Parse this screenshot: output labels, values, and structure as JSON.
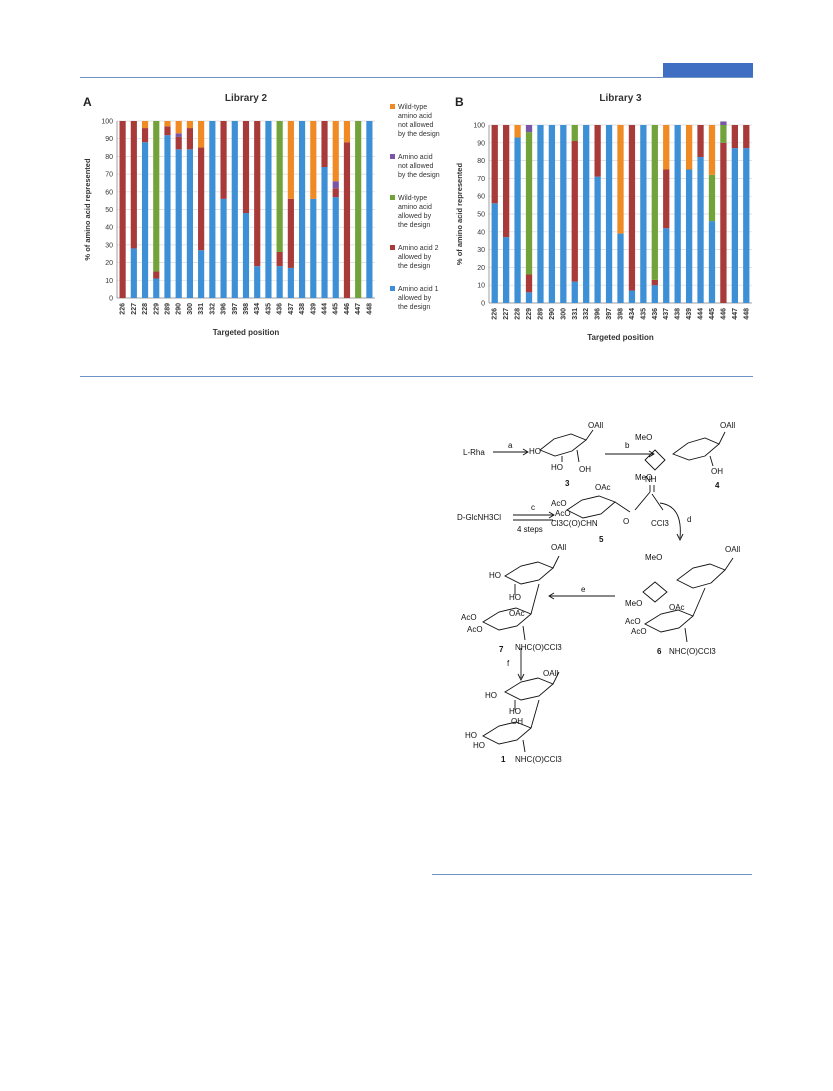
{
  "colors": {
    "rule": "#6f93c6",
    "header_block": "#3f6fc2",
    "amino_acid_1": "#3d8fd6",
    "amino_acid_2": "#a83a3a",
    "wild_type_allowed": "#72a33a",
    "not_allowed": "#7a57a6",
    "wild_type_not_allowed": "#f08a24"
  },
  "figure_letters": {
    "a": "A",
    "b": "B"
  },
  "chart_data": [
    {
      "type": "bar",
      "stacked": true,
      "title": "Library 2",
      "xlabel": "Targeted position",
      "ylabel": "% of amino acid represented",
      "ylim": [
        0,
        100
      ],
      "yticks": [
        "0",
        "10",
        "20",
        "30",
        "40",
        "50",
        "60",
        "70",
        "80",
        "90",
        "100"
      ],
      "grid": true,
      "legend_position": "right",
      "categories": [
        "226",
        "227",
        "228",
        "229",
        "289",
        "290",
        "300",
        "331",
        "332",
        "396",
        "397",
        "398",
        "434",
        "435",
        "436",
        "437",
        "438",
        "439",
        "444",
        "445",
        "446",
        "447",
        "448"
      ],
      "series": [
        {
          "name": "Amino acid 1 allowed by the design",
          "color_key": "amino_acid_1",
          "values": [
            0,
            28,
            88,
            11,
            92,
            84,
            84,
            27,
            100,
            56,
            100,
            48,
            18,
            100,
            18,
            17,
            100,
            56,
            74,
            57,
            0,
            0,
            100
          ]
        },
        {
          "name": "Amino acid 2 allowed by the design",
          "color_key": "amino_acid_2",
          "values": [
            100,
            72,
            8,
            4,
            5,
            7,
            12,
            58,
            0,
            44,
            0,
            52,
            82,
            0,
            8,
            39,
            0,
            0,
            26,
            5,
            88,
            0,
            0
          ]
        },
        {
          "name": "Wild-type amino acid allowed by the design",
          "color_key": "wild_type_allowed",
          "values": [
            0,
            0,
            0,
            85,
            0,
            0,
            0,
            0,
            0,
            0,
            0,
            0,
            0,
            0,
            74,
            0,
            0,
            0,
            0,
            0,
            0,
            100,
            0
          ]
        },
        {
          "name": "Amino acid not allowed by the design",
          "color_key": "not_allowed",
          "values": [
            0,
            0,
            0,
            0,
            0,
            2,
            0,
            0,
            0,
            0,
            0,
            0,
            0,
            0,
            0,
            0,
            0,
            0,
            0,
            4,
            0,
            0,
            0
          ]
        },
        {
          "name": "Wild-type amino acid not allowed by the design",
          "color_key": "wild_type_not_allowed",
          "values": [
            0,
            0,
            4,
            0,
            3,
            7,
            4,
            15,
            0,
            0,
            0,
            0,
            0,
            0,
            0,
            44,
            0,
            44,
            0,
            34,
            12,
            0,
            0
          ]
        }
      ]
    },
    {
      "type": "bar",
      "stacked": true,
      "title": "Library 3",
      "xlabel": "Targeted position",
      "ylabel": "% of amino acid represented",
      "ylim": [
        0,
        100
      ],
      "yticks": [
        "0",
        "10",
        "20",
        "30",
        "40",
        "50",
        "60",
        "70",
        "80",
        "90",
        "100"
      ],
      "grid": true,
      "legend_position": "none",
      "categories": [
        "226",
        "227",
        "228",
        "229",
        "289",
        "290",
        "300",
        "331",
        "332",
        "396",
        "397",
        "398",
        "434",
        "435",
        "436",
        "437",
        "438",
        "439",
        "444",
        "445",
        "446",
        "447",
        "448"
      ],
      "series": [
        {
          "name": "Amino acid 1 allowed by the design",
          "color_key": "amino_acid_1",
          "values": [
            56,
            37,
            93,
            6,
            100,
            100,
            100,
            12,
            100,
            71,
            100,
            39,
            7,
            100,
            10,
            42,
            100,
            75,
            82,
            46,
            0,
            87,
            87
          ]
        },
        {
          "name": "Amino acid 2 allowed by the design",
          "color_key": "amino_acid_2",
          "values": [
            44,
            63,
            0,
            10,
            0,
            0,
            0,
            79,
            0,
            29,
            0,
            0,
            93,
            0,
            3,
            33,
            0,
            0,
            18,
            0,
            90,
            13,
            13
          ]
        },
        {
          "name": "Wild-type amino acid allowed by the design",
          "color_key": "wild_type_allowed",
          "values": [
            0,
            0,
            0,
            80,
            0,
            0,
            0,
            9,
            0,
            0,
            0,
            0,
            0,
            0,
            87,
            0,
            0,
            0,
            0,
            26,
            10,
            0,
            0
          ]
        },
        {
          "name": "Amino acid not allowed by the design",
          "color_key": "not_allowed",
          "values": [
            0,
            0,
            0,
            4,
            0,
            0,
            0,
            0,
            0,
            0,
            0,
            0,
            0,
            0,
            0,
            0,
            0,
            0,
            0,
            0,
            2,
            0,
            0
          ]
        },
        {
          "name": "Wild-type amino acid not allowed by the design",
          "color_key": "wild_type_not_allowed",
          "values": [
            0,
            0,
            7,
            0,
            0,
            0,
            0,
            0,
            0,
            0,
            0,
            61,
            0,
            0,
            0,
            25,
            0,
            25,
            0,
            28,
            0,
            0,
            0
          ]
        }
      ]
    }
  ],
  "legend": [
    {
      "color_key": "wild_type_not_allowed",
      "lines": [
        "Wild-type",
        "amino acid",
        "not allowed",
        "by the design"
      ]
    },
    {
      "color_key": "not_allowed",
      "lines": [
        "Amino acid",
        "not allowed",
        "by the design"
      ]
    },
    {
      "color_key": "wild_type_allowed",
      "lines": [
        "Wild-type",
        "amino acid",
        "allowed by",
        "the design"
      ]
    },
    {
      "color_key": "amino_acid_2",
      "lines": [
        "Amino acid 2",
        "allowed by",
        "the design"
      ]
    },
    {
      "color_key": "amino_acid_1",
      "lines": [
        "Amino acid 1",
        "allowed by",
        "the design"
      ]
    }
  ],
  "scheme": {
    "start_rha": "L-Rha",
    "start_glc": "D-GlcNH3Cl",
    "steps_note": "4 steps",
    "arrow_labels": {
      "a": "a",
      "b": "b",
      "c": "c",
      "d": "d",
      "e": "e",
      "f": "f"
    },
    "compound_numbers": {
      "c1": "1",
      "c3": "3",
      "c4": "4",
      "c5": "5",
      "c6": "6",
      "c7": "7"
    },
    "groups": {
      "oall": "OAll",
      "ho": "HO",
      "oh": "OH",
      "meo": "MeO",
      "ome": "MeO",
      "oac": "OAc",
      "aco": "AcO",
      "nh": "NH",
      "ccl3": "CCl3",
      "nhcocl3": "NHC(O)CCl3",
      "cl3chn": "Cl3C(O)CHN",
      "o": "O"
    }
  }
}
